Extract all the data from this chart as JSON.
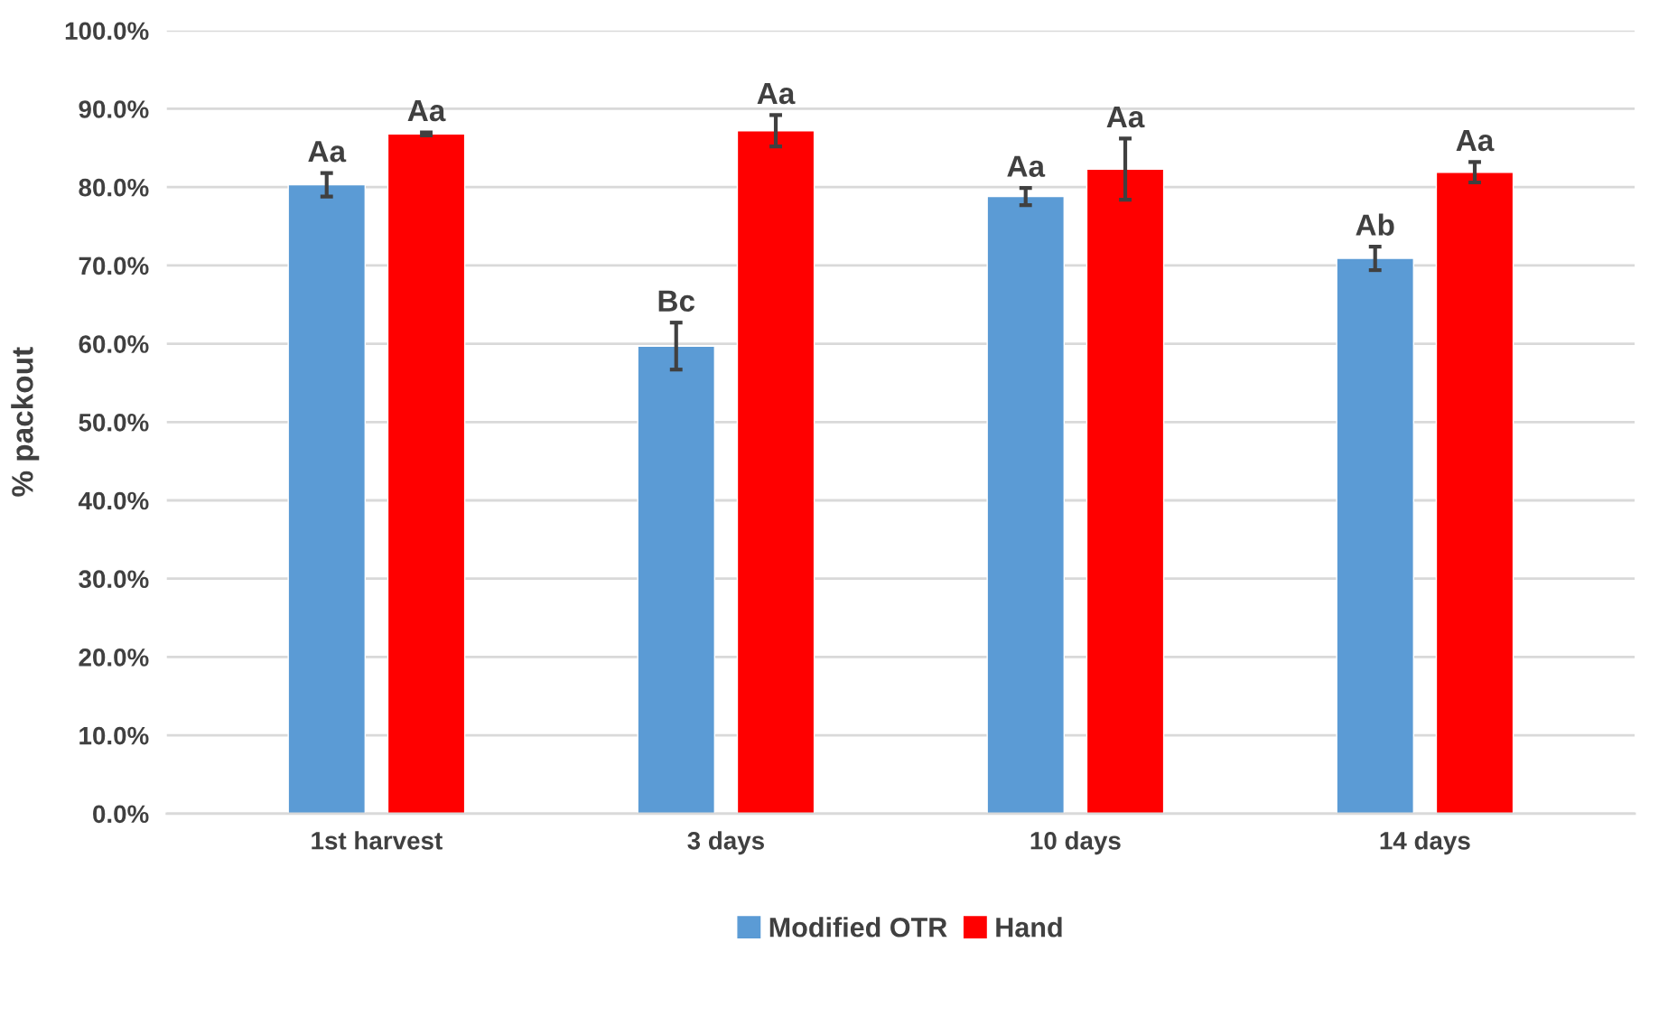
{
  "chart_data": {
    "type": "bar",
    "ylabel": "% packout",
    "categories": [
      "1st harvest",
      "3 days",
      "10 days",
      "14 days"
    ],
    "series": [
      {
        "name": "Modified OTR",
        "color": "#5b9bd5",
        "values": [
          80.3,
          59.7,
          78.8,
          70.9
        ],
        "errors": [
          1.5,
          3.0,
          1.1,
          1.5
        ]
      },
      {
        "name": "Hand",
        "color": "#ff0000",
        "values": [
          86.8,
          87.2,
          82.3,
          81.9
        ],
        "errors": [
          0.2,
          2.0,
          3.9,
          1.3
        ]
      }
    ],
    "ylim": [
      0,
      100
    ],
    "yticks": [
      {
        "value": 0,
        "label": "0.0%"
      },
      {
        "value": 10,
        "label": "10.0%"
      },
      {
        "value": 20,
        "label": "20.0%"
      },
      {
        "value": 30,
        "label": "30.0%"
      },
      {
        "value": 40,
        "label": "40.0%"
      },
      {
        "value": 50,
        "label": "50.0%"
      },
      {
        "value": 60,
        "label": "60.0%"
      },
      {
        "value": 70,
        "label": "70.0%"
      },
      {
        "value": 80,
        "label": "80.0%"
      },
      {
        "value": 90,
        "label": "90.0%"
      },
      {
        "value": 100,
        "label": "100.0%"
      }
    ],
    "grid": "y",
    "legend": "bottom",
    "annotations": [
      "Aa",
      "Aa",
      "Bc",
      "Aa",
      "Aa",
      "Aa",
      "Ab",
      "Aa"
    ]
  }
}
